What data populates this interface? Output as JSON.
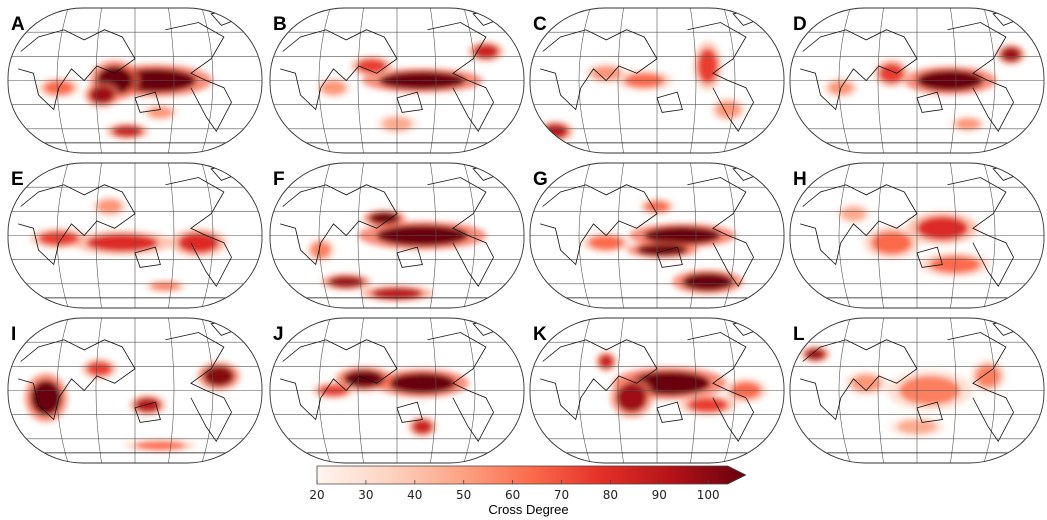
{
  "panels": [
    {
      "label": "A"
    },
    {
      "label": "B"
    },
    {
      "label": "C"
    },
    {
      "label": "D"
    },
    {
      "label": "E"
    },
    {
      "label": "F"
    },
    {
      "label": "G"
    },
    {
      "label": "H"
    },
    {
      "label": "I"
    },
    {
      "label": "J"
    },
    {
      "label": "K"
    },
    {
      "label": "L"
    }
  ],
  "colorbar": {
    "title": "Cross Degree",
    "min": 20,
    "max": 100,
    "extend": "max",
    "ticks": [
      "20",
      "30",
      "40",
      "50",
      "60",
      "70",
      "80",
      "90",
      "100"
    ],
    "colors": [
      "#fff5f0",
      "#fdd4c2",
      "#fca486",
      "#fb6b4b",
      "#e32f27",
      "#b11218",
      "#67000d"
    ]
  }
}
